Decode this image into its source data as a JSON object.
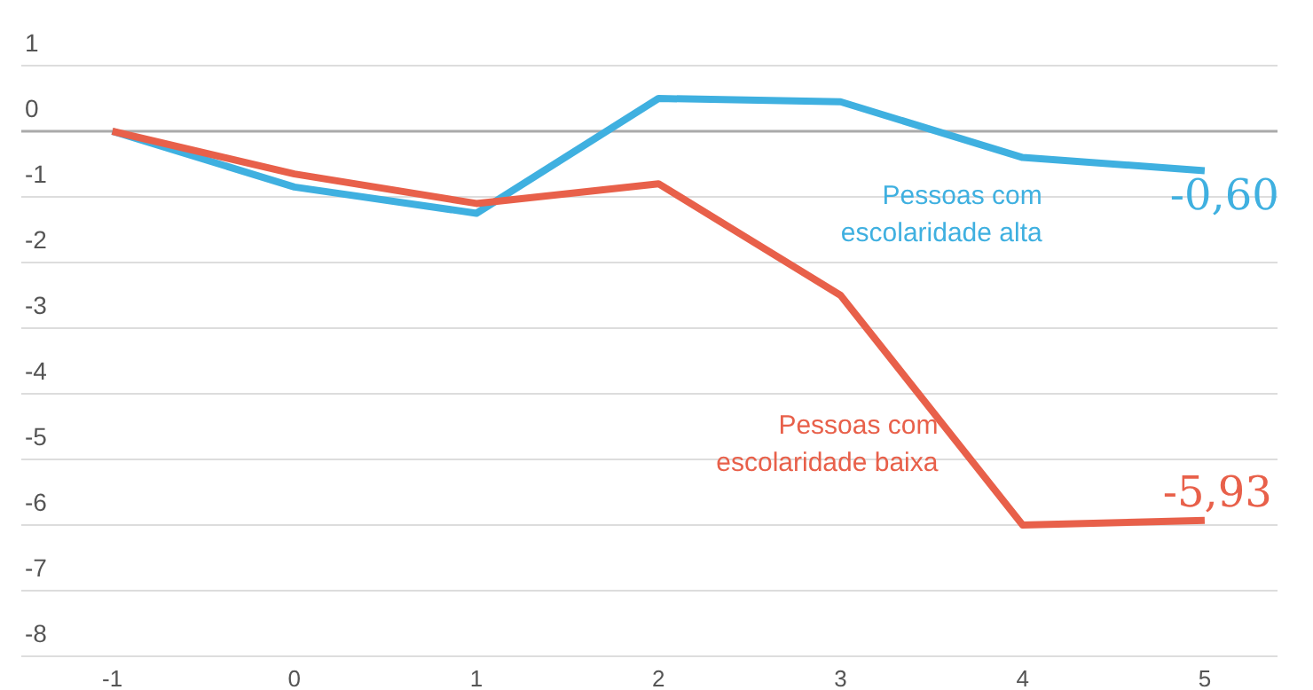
{
  "chart_data": {
    "type": "line",
    "x": [
      -1,
      0,
      1,
      2,
      3,
      4,
      5
    ],
    "series": [
      {
        "name": "Pessoas com escolaridade alta",
        "color": "#3fb0e0",
        "values": [
          0,
          -0.85,
          -1.25,
          0.5,
          0.45,
          -0.4,
          -0.6
        ],
        "value_labels": [
          null,
          null,
          null,
          null,
          null,
          null,
          "-0,60"
        ]
      },
      {
        "name": "Pessoas com escolaridade baixa",
        "color": "#e8604a",
        "values": [
          0,
          -0.65,
          -1.1,
          -0.8,
          -2.5,
          -6,
          -5.93
        ],
        "value_labels": [
          null,
          null,
          null,
          null,
          null,
          null,
          "-5,93"
        ]
      }
    ],
    "xlim": [
      -1.5,
      5.4
    ],
    "xticks": [
      -1,
      0,
      1,
      2,
      3,
      4,
      5
    ],
    "ylim": [
      -8,
      1
    ],
    "yticks": [
      -8,
      -7,
      -6,
      -5,
      -4,
      -3,
      -2,
      -1,
      0,
      1
    ],
    "grid": "y",
    "marker": "none",
    "line_style": "solid",
    "ref_lines": [
      {
        "axis": "y",
        "value": 0,
        "color": "#aaaaaa"
      }
    ]
  }
}
